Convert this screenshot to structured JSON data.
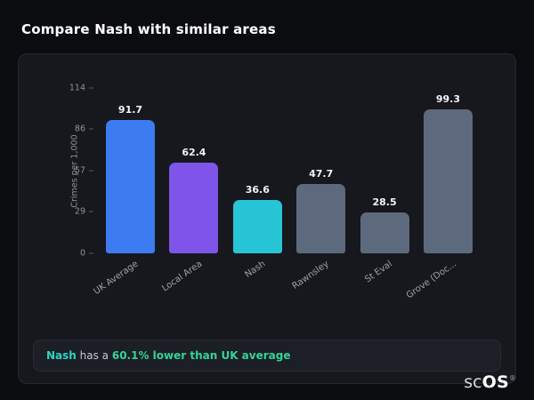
{
  "header": {
    "title": "Compare Nash with similar areas"
  },
  "chart_data": {
    "type": "bar",
    "title": "",
    "xlabel": "",
    "ylabel": "Crimes per 1,000",
    "categories": [
      "UK Average",
      "Local Area",
      "Nash",
      "Rawnsley",
      "St Eval",
      "Grove (Doc..."
    ],
    "values": [
      91.7,
      62.4,
      36.6,
      47.7,
      28.5,
      99.3
    ],
    "value_labels": [
      "91.7",
      "62.4",
      "36.6",
      "47.7",
      "28.5",
      "99.3"
    ],
    "bar_colors": [
      "#3d7bf0",
      "#7e55e8",
      "#28c5d6",
      "#5d6a7d",
      "#5d6a7d",
      "#5d6a7d"
    ],
    "yticks": [
      0,
      29,
      57,
      86,
      114
    ],
    "ylim": [
      0,
      114
    ],
    "grid": false,
    "legend": "none"
  },
  "callout": {
    "subject": "Nash",
    "middle": " has a ",
    "highlight": "60.1% lower than UK average",
    "subject_color": "#2dd4bf",
    "highlight_color": "#34d399"
  },
  "logo": {
    "prefix": "sc",
    "suffix": "OS",
    "reg": "®"
  }
}
